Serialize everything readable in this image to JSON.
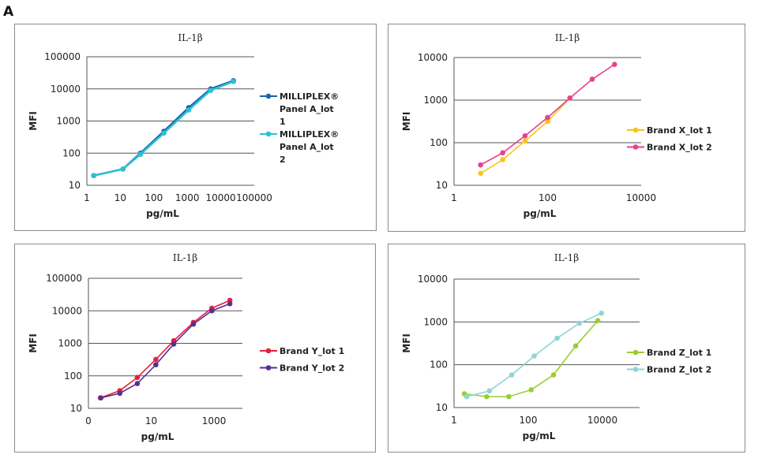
{
  "figure_label": "A",
  "chart_data": [
    {
      "type": "line",
      "title": "IL-1β",
      "xlabel": "pg/mL",
      "ylabel": "MFI",
      "xscale": "log",
      "yscale": "log",
      "xlim": [
        1,
        100000
      ],
      "ylim": [
        10,
        100000
      ],
      "xticks": [
        {
          "v": 1,
          "label": "1"
        },
        {
          "v": 10,
          "label": "10"
        },
        {
          "v": 100,
          "label": "100"
        },
        {
          "v": 1000,
          "label": "1000"
        },
        {
          "v": 10000,
          "label": "10000"
        },
        {
          "v": 100000,
          "label": "100000"
        }
      ],
      "yticks": [
        {
          "v": 10,
          "label": "10"
        },
        {
          "v": 100,
          "label": "100"
        },
        {
          "v": 1000,
          "label": "1000"
        },
        {
          "v": 10000,
          "label": "10000"
        },
        {
          "v": 100000,
          "label": "100000"
        }
      ],
      "grid": "horizontal",
      "legend": "right",
      "series": [
        {
          "name": "MILLIPLEX® Panel A_lot 1",
          "color": "#1a64ad",
          "x": [
            1.6,
            12,
            40,
            200,
            1100,
            5000,
            24000
          ],
          "y": [
            20,
            32,
            100,
            480,
            2600,
            10000,
            18000
          ]
        },
        {
          "name": "MILLIPLEX® Panel A_lot 2",
          "color": "#2cc0d2",
          "x": [
            1.6,
            12,
            40,
            200,
            1100,
            5000,
            24000
          ],
          "y": [
            20,
            32,
            92,
            420,
            2200,
            9000,
            17000
          ]
        }
      ]
    },
    {
      "type": "line",
      "title": "IL-1β",
      "xlabel": "pg/mL",
      "ylabel": "MFI",
      "xscale": "log",
      "yscale": "log",
      "xlim": [
        1,
        10000
      ],
      "ylim": [
        10,
        10000
      ],
      "xticks": [
        {
          "v": 1,
          "label": "1"
        },
        {
          "v": 100,
          "label": "100"
        },
        {
          "v": 10000,
          "label": "10000"
        }
      ],
      "yticks": [
        {
          "v": 10,
          "label": "10"
        },
        {
          "v": 100,
          "label": "100"
        },
        {
          "v": 1000,
          "label": "1000"
        },
        {
          "v": 10000,
          "label": "10000"
        }
      ],
      "grid": "horizontal",
      "legend": "right",
      "series": [
        {
          "name": "Brand X_lot 1",
          "color": "#f7c51a",
          "x": [
            3.7,
            11,
            33,
            100,
            300
          ],
          "y": [
            19,
            40,
            110,
            315,
            1120
          ]
        },
        {
          "name": "Brand X_lot 2",
          "color": "#e8408e",
          "x": [
            3.7,
            11,
            33,
            100,
            300,
            900,
            2700
          ],
          "y": [
            30,
            58,
            145,
            390,
            1120,
            3100,
            6900
          ]
        }
      ]
    },
    {
      "type": "line",
      "title": "IL-1β",
      "xlabel": "pg/mL",
      "ylabel": "MFI",
      "xscale": "log",
      "yscale": "log",
      "xlim": [
        0.1,
        8000
      ],
      "ylim": [
        10,
        100000
      ],
      "xticks": [
        {
          "v": 0.1,
          "label": "0"
        },
        {
          "v": 10,
          "label": "10"
        },
        {
          "v": 1000,
          "label": "1000"
        }
      ],
      "yticks": [
        {
          "v": 10,
          "label": "10"
        },
        {
          "v": 100,
          "label": "100"
        },
        {
          "v": 1000,
          "label": "1000"
        },
        {
          "v": 10000,
          "label": "10000"
        },
        {
          "v": 100000,
          "label": "100000"
        }
      ],
      "grid": "horizontal",
      "legend": "right",
      "series": [
        {
          "name": "Brand Y_lot 1",
          "color": "#e5203f",
          "x": [
            0.24,
            1,
            3.6,
            14,
            52,
            220,
            850,
            3200
          ],
          "y": [
            21,
            35,
            89,
            320,
            1200,
            4400,
            12000,
            21000
          ]
        },
        {
          "name": "Brand Y_lot 2",
          "color": "#5a2d90",
          "x": [
            0.25,
            1,
            3.6,
            14,
            52,
            220,
            850,
            3200
          ],
          "y": [
            21,
            29,
            58,
            220,
            950,
            3900,
            10000,
            16500
          ]
        }
      ]
    },
    {
      "type": "line",
      "title": "IL-1β",
      "xlabel": "pg/mL",
      "ylabel": "MFI",
      "xscale": "log",
      "yscale": "log",
      "xlim": [
        1,
        100000
      ],
      "ylim": [
        10,
        10000
      ],
      "xticks": [
        {
          "v": 1,
          "label": "1"
        },
        {
          "v": 100,
          "label": "100"
        },
        {
          "v": 10000,
          "label": "10000"
        }
      ],
      "yticks": [
        {
          "v": 10,
          "label": "10"
        },
        {
          "v": 100,
          "label": "100"
        },
        {
          "v": 1000,
          "label": "1000"
        },
        {
          "v": 10000,
          "label": "10000"
        }
      ],
      "grid": "horizontal",
      "legend": "right",
      "series": [
        {
          "name": "Brand Z_lot 1",
          "color": "#9acd32",
          "x": [
            1.9,
            7.6,
            30,
            120,
            480,
            1900,
            7500
          ],
          "y": [
            21,
            18,
            18,
            26,
            58,
            275,
            1070
          ]
        },
        {
          "name": "Brand Z_lot 2",
          "color": "#8fd5d4",
          "x": [
            2.2,
            9,
            36,
            145,
            600,
            2400,
            9400
          ],
          "y": [
            18,
            24.5,
            58,
            160,
            415,
            930,
            1600
          ]
        }
      ]
    }
  ]
}
